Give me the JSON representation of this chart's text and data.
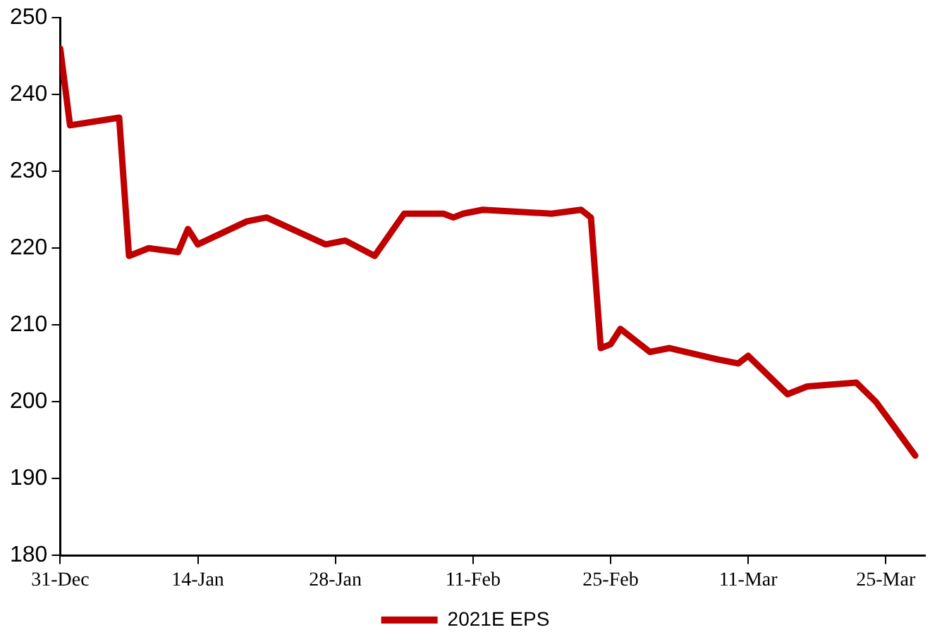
{
  "chart_data": {
    "type": "line",
    "x": [
      "2020-12-31",
      "2021-01-01",
      "2021-01-06",
      "2021-01-07",
      "2021-01-09",
      "2021-01-12",
      "2021-01-13",
      "2021-01-14",
      "2021-01-19",
      "2021-01-21",
      "2021-01-27",
      "2021-01-29",
      "2021-02-01",
      "2021-02-04",
      "2021-02-08",
      "2021-02-09",
      "2021-02-10",
      "2021-02-12",
      "2021-02-19",
      "2021-02-22",
      "2021-02-23",
      "2021-02-24",
      "2021-02-25",
      "2021-02-26",
      "2021-03-01",
      "2021-03-03",
      "2021-03-08",
      "2021-03-10",
      "2021-03-11",
      "2021-03-15",
      "2021-03-17",
      "2021-03-22",
      "2021-03-24",
      "2021-03-28"
    ],
    "series": [
      {
        "name": "2021E EPS",
        "color": "#c00000",
        "values": [
          246,
          236,
          237,
          219,
          220,
          219.5,
          222.5,
          220.5,
          223.5,
          224,
          220.5,
          221,
          219,
          224.5,
          224.5,
          224,
          224.5,
          225,
          224.5,
          225,
          224,
          207,
          207.5,
          209.5,
          206.5,
          207,
          205.5,
          205,
          206,
          201,
          202,
          202.5,
          200,
          193
        ]
      }
    ],
    "xlim": [
      "2020-12-31",
      "2021-03-29"
    ],
    "xticks": [
      {
        "value": "2020-12-31",
        "label": "31-Dec"
      },
      {
        "value": "2021-01-14",
        "label": "14-Jan"
      },
      {
        "value": "2021-01-28",
        "label": "28-Jan"
      },
      {
        "value": "2021-02-11",
        "label": "11-Feb"
      },
      {
        "value": "2021-02-25",
        "label": "25-Feb"
      },
      {
        "value": "2021-03-11",
        "label": "11-Mar"
      },
      {
        "value": "2021-03-25",
        "label": "25-Mar"
      }
    ],
    "ylim": [
      180,
      250
    ],
    "yticks": [
      180,
      190,
      200,
      210,
      220,
      230,
      240,
      250
    ],
    "grid": false,
    "legend": "bottom",
    "marker": "none",
    "line_style": "solid"
  }
}
